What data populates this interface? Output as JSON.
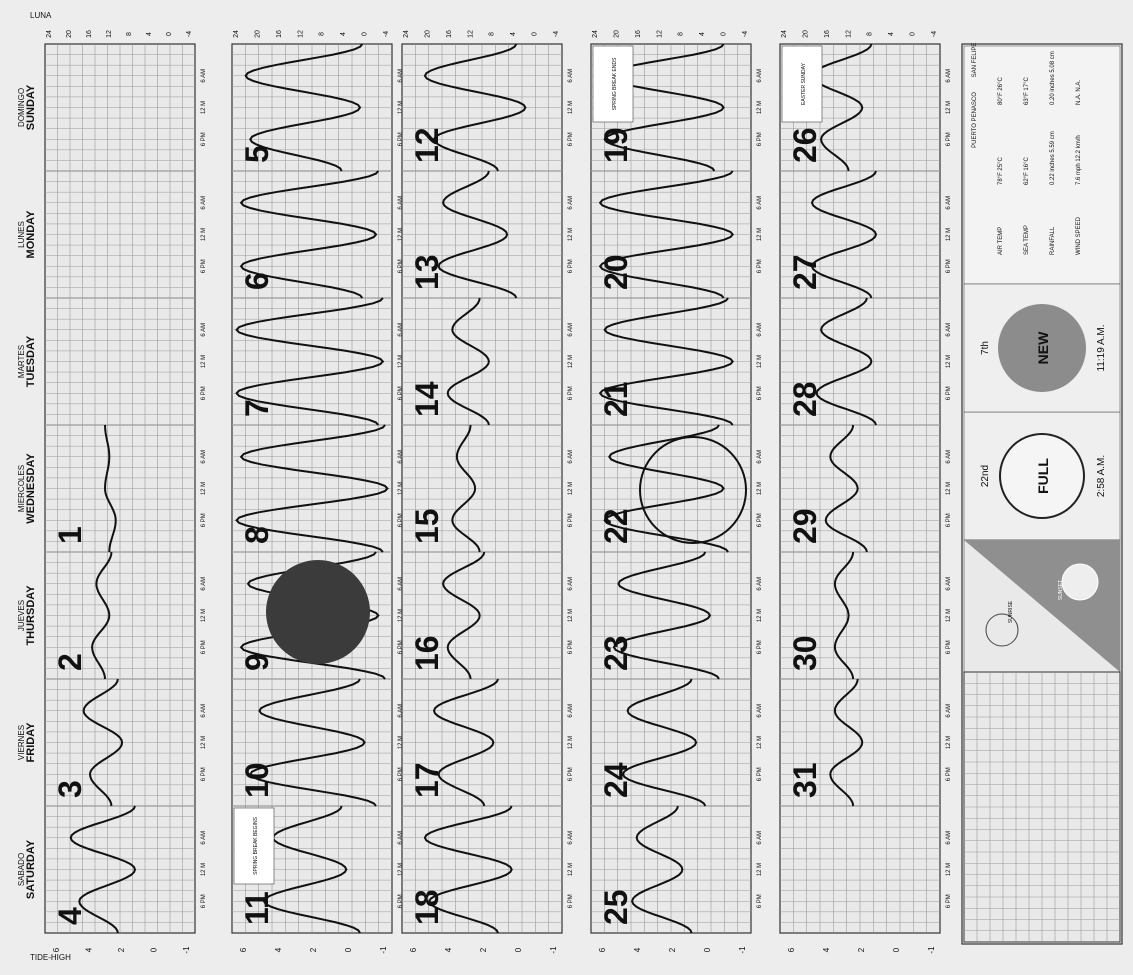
{
  "page": {
    "header_left_top": "LUNA",
    "header_left_bottom": "TIDE-HIGH"
  },
  "days": [
    {
      "es": "DOMINGO",
      "en": "SUNDAY"
    },
    {
      "es": "LUNES",
      "en": "MONDAY"
    },
    {
      "es": "MARTES",
      "en": "TUESDAY"
    },
    {
      "es": "MIERCOLES",
      "en": "WEDNESDAY"
    },
    {
      "es": "JUEVES",
      "en": "THURSDAY"
    },
    {
      "es": "VIERNES",
      "en": "FRIDAY"
    },
    {
      "es": "SABADO",
      "en": "SATURDAY"
    }
  ],
  "time_labels": [
    "6 AM",
    "12 M",
    "6 PM"
  ],
  "height_ticks": [
    "-1",
    "0",
    "2",
    "4",
    "6"
  ],
  "top_scale": [
    "24",
    "20",
    "16",
    "12",
    "8",
    "4",
    "0",
    "-4"
  ],
  "weeks": [
    [
      null,
      null,
      null,
      "1",
      "2",
      "3",
      "4"
    ],
    [
      "5",
      "6",
      "7",
      "8",
      "9",
      "10",
      "11"
    ],
    [
      "12",
      "13",
      "14",
      "15",
      "16",
      "17",
      "18"
    ],
    [
      "19",
      "20",
      "21",
      "22",
      "23",
      "24",
      "25"
    ],
    [
      "26",
      "27",
      "28",
      "29",
      "30",
      "31",
      null
    ]
  ],
  "notes": [
    {
      "day": "11",
      "text": "SPRING BREAK BEGINS"
    },
    {
      "day": "19",
      "text": "SPRING BREAK ENDS"
    },
    {
      "day": "26",
      "text": "EASTER SUNDAY"
    }
  ],
  "moon_phases": [
    {
      "date": "22nd",
      "phase": "FULL",
      "time": "2:58 A.M."
    },
    {
      "date": "7th",
      "phase": "NEW",
      "time": "11:19 A.M."
    }
  ],
  "sun_labels": [
    "SUNRISE",
    "SUNSET"
  ],
  "weather": {
    "columns": [
      "PUERTO PENASCO",
      "SAN FELIPE"
    ],
    "rows": [
      {
        "label": "AIR TEMP",
        "pp": "78°F 25°C",
        "sf": "80°F 26°C"
      },
      {
        "label": "SEA TEMP",
        "pp": "62°F 16°C",
        "sf": "63°F 17°C"
      },
      {
        "label": "RAINFALL",
        "pp": "0.22 inches 5.59 cm",
        "sf": "0.20 inches 5.08 cm"
      },
      {
        "label": "WIND SPEED",
        "pp": "7.6 mph 12.2 km/h",
        "sf": "N.A. N.A."
      }
    ]
  },
  "chart_data": {
    "type": "line",
    "title": "",
    "xlabel": "",
    "ylabel": "",
    "ylim": [
      -1,
      6
    ],
    "note": "Daily tide curves per calendar day; values are approximate tide heights (ft) sampled at 0h,6h,12h,18h,24h",
    "series": [
      {
        "day": 1,
        "values": [
          3.0,
          2.7,
          3.2,
          3.0,
          3.2
        ]
      },
      {
        "day": 2,
        "values": [
          3.2,
          3.8,
          3.0,
          3.6,
          2.9
        ]
      },
      {
        "day": 3,
        "values": [
          2.9,
          3.9,
          2.4,
          4.2,
          2.6
        ]
      },
      {
        "day": 4,
        "values": [
          2.6,
          4.4,
          1.8,
          4.8,
          1.8
        ]
      },
      {
        "day": 5,
        "values": [
          1.2,
          5.2,
          0.4,
          5.4,
          0.3
        ]
      },
      {
        "day": 6,
        "values": [
          0.3,
          5.6,
          -0.3,
          5.6,
          -0.4
        ]
      },
      {
        "day": 7,
        "values": [
          -0.4,
          5.8,
          -0.6,
          5.8,
          -0.6
        ]
      },
      {
        "day": 8,
        "values": [
          -0.6,
          5.8,
          -0.8,
          5.6,
          -0.7
        ]
      },
      {
        "day": 9,
        "values": [
          -0.7,
          5.6,
          -0.4,
          5.3,
          -0.3
        ]
      },
      {
        "day": 10,
        "values": [
          -0.3,
          5.2,
          0.2,
          4.8,
          0.4
        ]
      },
      {
        "day": 11,
        "values": [
          0.4,
          4.6,
          1.0,
          4.2,
          1.2
        ]
      },
      {
        "day": 12,
        "values": [
          1.8,
          4.6,
          0.6,
          5.0,
          1.0
        ]
      },
      {
        "day": 13,
        "values": [
          1.0,
          4.4,
          1.4,
          4.2,
          2.2
        ]
      },
      {
        "day": 14,
        "values": [
          2.2,
          4.0,
          2.2,
          3.8,
          2.6
        ]
      },
      {
        "day": 15,
        "values": [
          2.6,
          3.8,
          2.8,
          3.6,
          3.0
        ]
      },
      {
        "day": 16,
        "values": [
          3.0,
          4.0,
          2.6,
          4.2,
          2.4
        ]
      },
      {
        "day": 17,
        "values": [
          2.4,
          4.4,
          2.0,
          4.6,
          1.8
        ]
      },
      {
        "day": 18,
        "values": [
          1.8,
          4.8,
          1.2,
          5.0,
          1.2
        ]
      },
      {
        "day": 19,
        "values": [
          0.6,
          5.4,
          0.2,
          5.4,
          0.2
        ]
      },
      {
        "day": 20,
        "values": [
          0.2,
          5.6,
          -0.2,
          5.6,
          -0.2
        ]
      },
      {
        "day": 21,
        "values": [
          -0.2,
          5.6,
          -0.2,
          5.4,
          0.0
        ]
      },
      {
        "day": 22,
        "values": [
          0.0,
          5.4,
          0.2,
          5.2,
          0.4
        ]
      },
      {
        "day": 23,
        "values": [
          0.4,
          5.0,
          0.8,
          4.8,
          1.0
        ]
      },
      {
        "day": 24,
        "values": [
          1.0,
          4.6,
          1.4,
          4.4,
          1.6
        ]
      },
      {
        "day": 25,
        "values": [
          1.6,
          4.2,
          2.0,
          4.0,
          2.2
        ]
      },
      {
        "day": 26,
        "values": [
          3.0,
          4.2,
          2.4,
          4.6,
          2.0
        ]
      },
      {
        "day": 27,
        "values": [
          2.0,
          4.6,
          1.8,
          4.6,
          1.8
        ]
      },
      {
        "day": 28,
        "values": [
          1.8,
          4.4,
          2.0,
          4.2,
          2.2
        ]
      },
      {
        "day": 29,
        "values": [
          2.2,
          4.0,
          2.6,
          3.8,
          2.8
        ]
      },
      {
        "day": 30,
        "values": [
          2.8,
          3.6,
          3.0,
          3.6,
          2.8
        ]
      },
      {
        "day": 31,
        "values": [
          2.8,
          3.8,
          2.4,
          3.6,
          2.6
        ]
      }
    ]
  }
}
